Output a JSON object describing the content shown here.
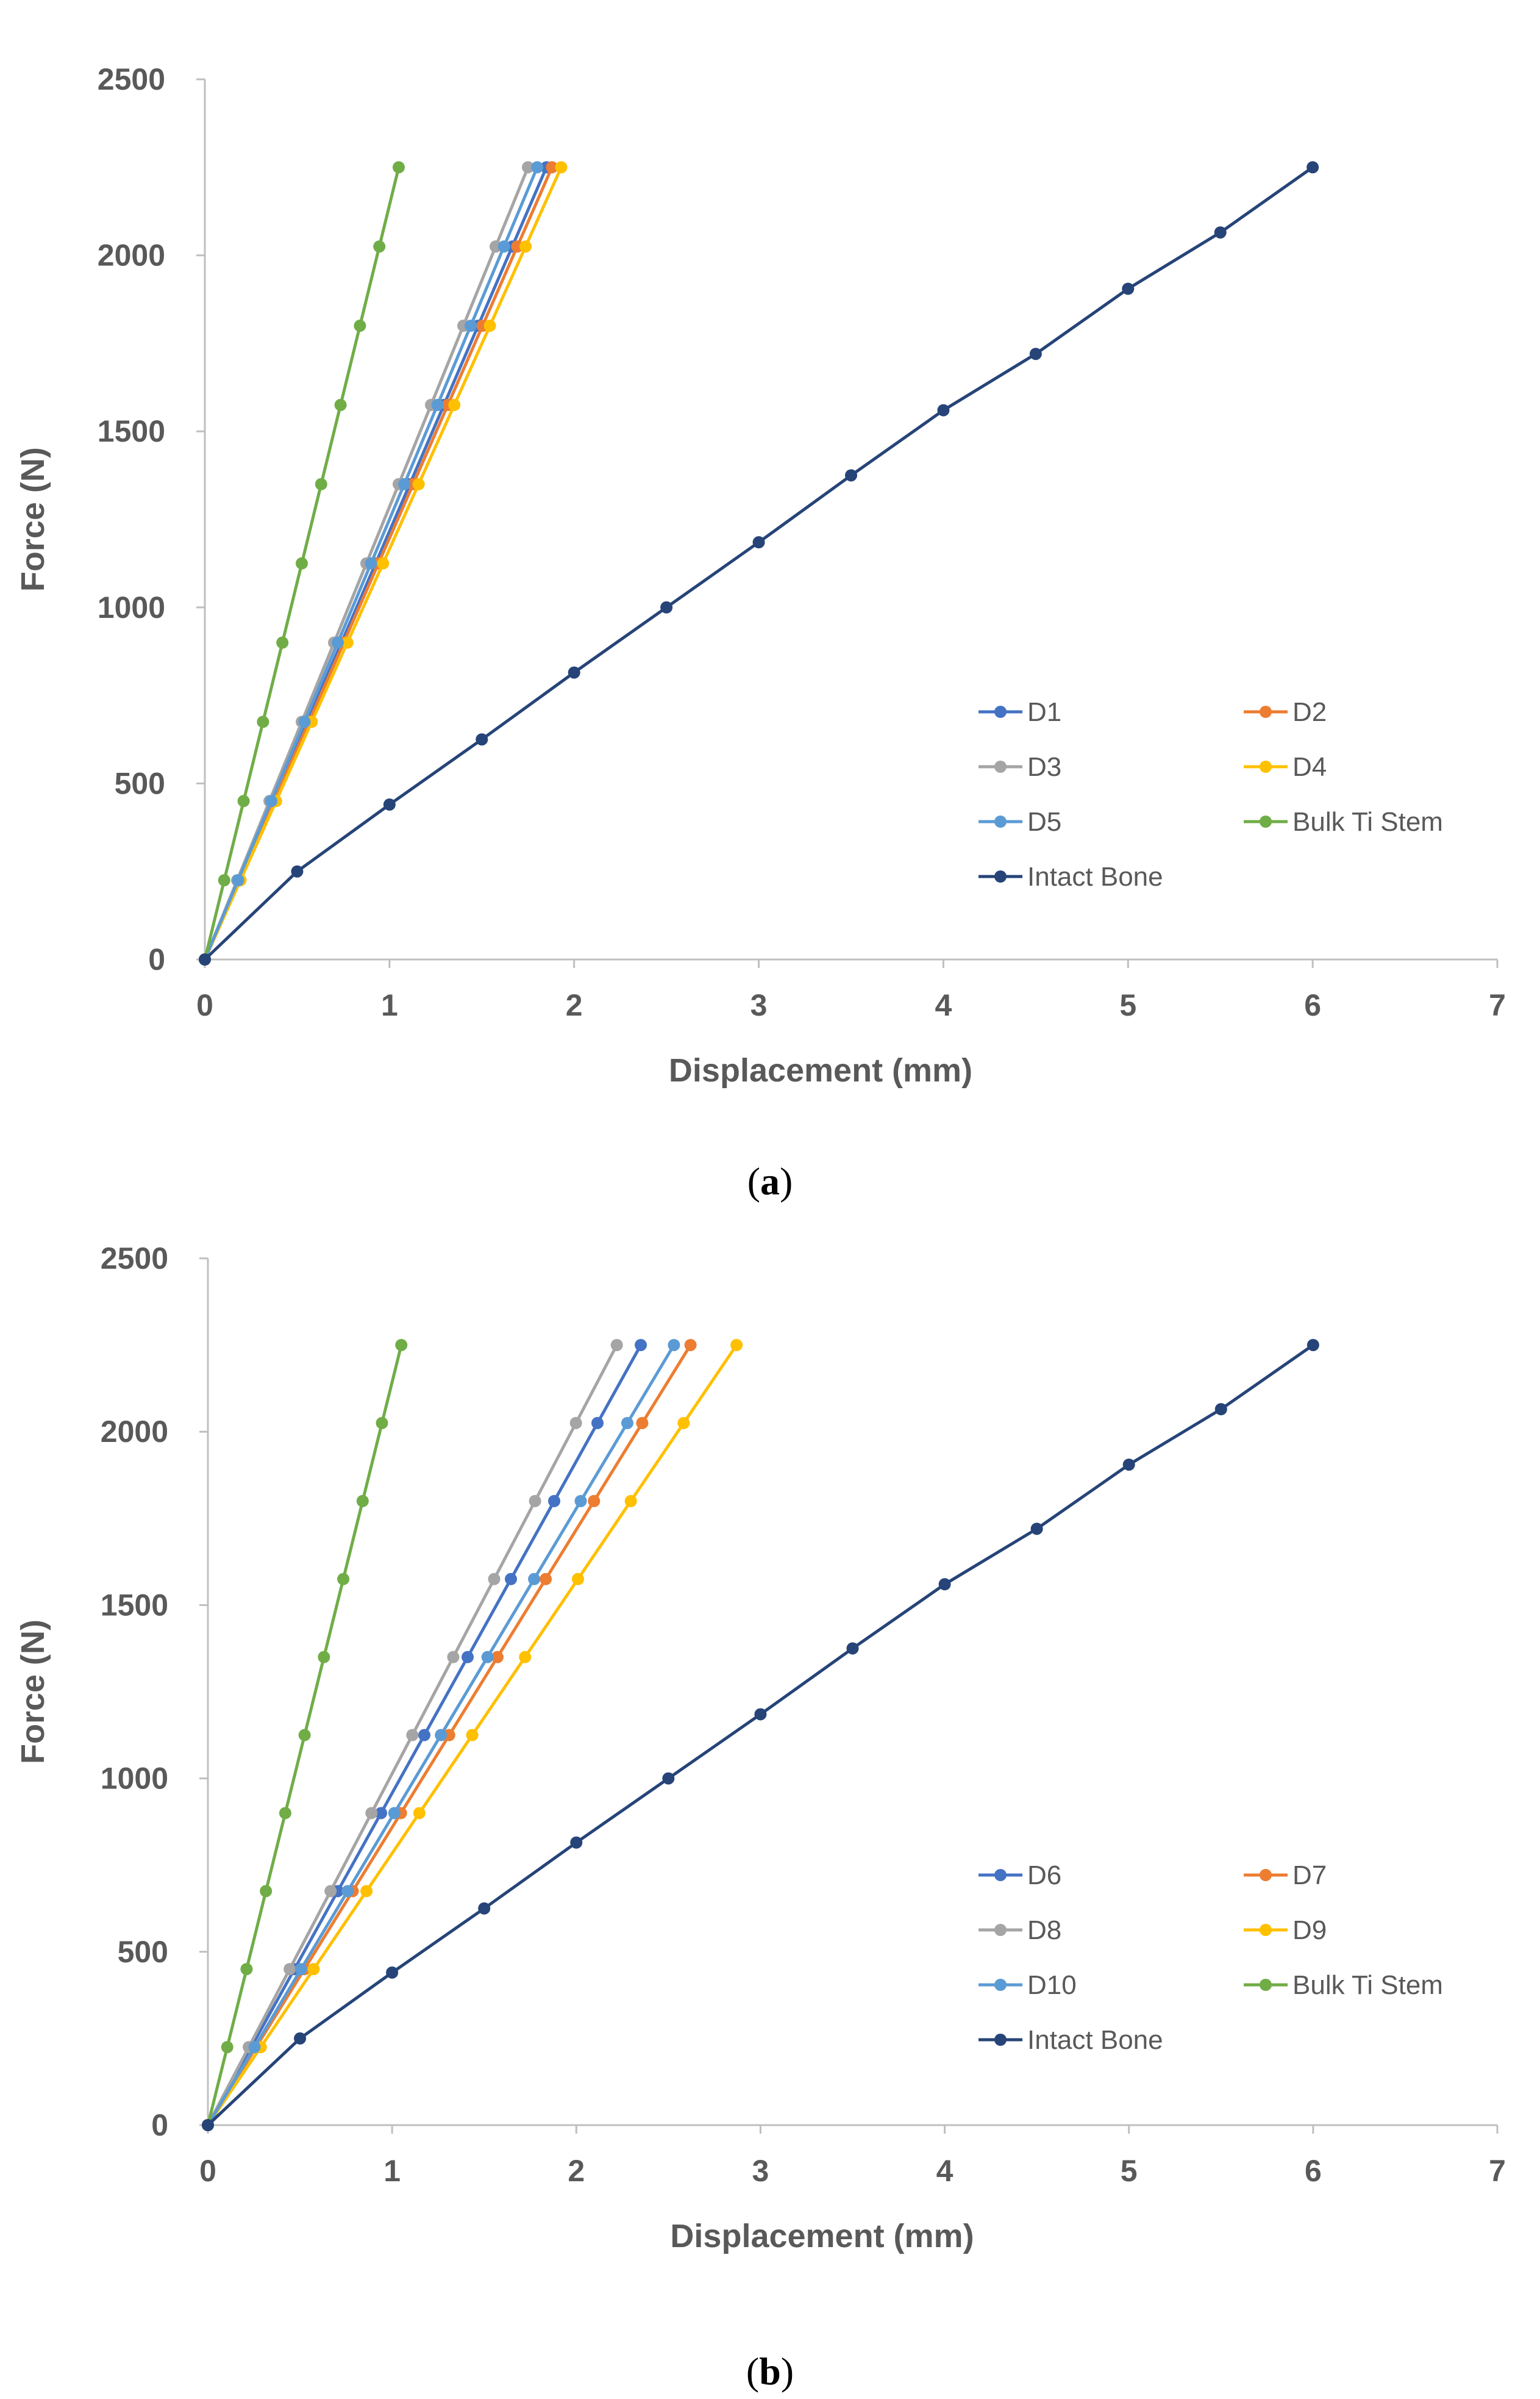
{
  "chart_data": [
    {
      "type": "line",
      "caption_label": "a",
      "xlabel": "Displacement (mm)",
      "ylabel": "Force (N)",
      "xlim": [
        0,
        7
      ],
      "ylim": [
        0,
        2500
      ],
      "x_ticks": [
        "0",
        "1",
        "2",
        "3",
        "4",
        "5",
        "6",
        "7"
      ],
      "y_ticks": [
        "0",
        "500",
        "1000",
        "1500",
        "2000",
        "2500"
      ],
      "legend_position": "right-middle",
      "series": [
        {
          "name": "D1",
          "color": "#4472C4",
          "points": [
            [
              0,
              0
            ],
            [
              0.185,
              225
            ],
            [
              0.37,
              450
            ],
            [
              0.555,
              675
            ],
            [
              0.74,
              900
            ],
            [
              0.925,
              1125
            ],
            [
              1.11,
              1350
            ],
            [
              1.295,
              1575
            ],
            [
              1.48,
              1800
            ],
            [
              1.665,
              2025
            ],
            [
              1.85,
              2250
            ]
          ]
        },
        {
          "name": "D2",
          "color": "#ED7D31",
          "points": [
            [
              0,
              0
            ],
            [
              0.188,
              225
            ],
            [
              0.376,
              450
            ],
            [
              0.564,
              675
            ],
            [
              0.752,
              900
            ],
            [
              0.94,
              1125
            ],
            [
              1.128,
              1350
            ],
            [
              1.316,
              1575
            ],
            [
              1.504,
              1800
            ],
            [
              1.692,
              2025
            ],
            [
              1.88,
              2250
            ]
          ]
        },
        {
          "name": "D3",
          "color": "#A5A5A5",
          "points": [
            [
              0,
              0
            ],
            [
              0.175,
              225
            ],
            [
              0.35,
              450
            ],
            [
              0.525,
              675
            ],
            [
              0.7,
              900
            ],
            [
              0.875,
              1125
            ],
            [
              1.05,
              1350
            ],
            [
              1.225,
              1575
            ],
            [
              1.4,
              1800
            ],
            [
              1.575,
              2025
            ],
            [
              1.75,
              2250
            ]
          ]
        },
        {
          "name": "D4",
          "color": "#FFC000",
          "points": [
            [
              0,
              0
            ],
            [
              0.193,
              225
            ],
            [
              0.386,
              450
            ],
            [
              0.579,
              675
            ],
            [
              0.772,
              900
            ],
            [
              0.965,
              1125
            ],
            [
              1.158,
              1350
            ],
            [
              1.351,
              1575
            ],
            [
              1.544,
              1800
            ],
            [
              1.737,
              2025
            ],
            [
              1.93,
              2250
            ]
          ]
        },
        {
          "name": "D5",
          "color": "#5B9BD5",
          "points": [
            [
              0,
              0
            ],
            [
              0.18,
              225
            ],
            [
              0.36,
              450
            ],
            [
              0.54,
              675
            ],
            [
              0.72,
              900
            ],
            [
              0.9,
              1125
            ],
            [
              1.08,
              1350
            ],
            [
              1.26,
              1575
            ],
            [
              1.44,
              1800
            ],
            [
              1.62,
              2025
            ],
            [
              1.8,
              2250
            ]
          ]
        },
        {
          "name": "Bulk Ti Stem",
          "color": "#70AD47",
          "points": [
            [
              0,
              0
            ],
            [
              0.105,
              225
            ],
            [
              0.21,
              450
            ],
            [
              0.315,
              675
            ],
            [
              0.42,
              900
            ],
            [
              0.525,
              1125
            ],
            [
              0.63,
              1350
            ],
            [
              0.735,
              1575
            ],
            [
              0.84,
              1800
            ],
            [
              0.945,
              2025
            ],
            [
              1.05,
              2250
            ]
          ]
        },
        {
          "name": "Intact Bone",
          "color": "#264478",
          "points": [
            [
              0,
              0
            ],
            [
              0.5,
              250
            ],
            [
              1,
              440
            ],
            [
              1.5,
              625
            ],
            [
              2,
              815
            ],
            [
              2.5,
              1000
            ],
            [
              3,
              1185
            ],
            [
              3.5,
              1375
            ],
            [
              4,
              1560
            ],
            [
              4.5,
              1720
            ],
            [
              5,
              1905
            ],
            [
              5.5,
              2065
            ],
            [
              6,
              2250
            ]
          ]
        }
      ]
    },
    {
      "type": "line",
      "caption_label": "b",
      "xlabel": "Displacement (mm)",
      "ylabel": "Force (N)",
      "xlim": [
        0,
        7
      ],
      "ylim": [
        0,
        2500
      ],
      "x_ticks": [
        "0",
        "1",
        "2",
        "3",
        "4",
        "5",
        "6",
        "7"
      ],
      "y_ticks": [
        "0",
        "500",
        "1000",
        "1500",
        "2000",
        "2500"
      ],
      "legend_position": "right-middle",
      "series": [
        {
          "name": "D6",
          "color": "#4472C4",
          "points": [
            [
              0,
              0
            ],
            [
              0.235,
              225
            ],
            [
              0.47,
              450
            ],
            [
              0.705,
              675
            ],
            [
              0.94,
              900
            ],
            [
              1.175,
              1125
            ],
            [
              1.41,
              1350
            ],
            [
              1.645,
              1575
            ],
            [
              1.88,
              1800
            ],
            [
              2.115,
              2025
            ],
            [
              2.35,
              2250
            ]
          ]
        },
        {
          "name": "D7",
          "color": "#ED7D31",
          "points": [
            [
              0,
              0
            ],
            [
              0.262,
              225
            ],
            [
              0.524,
              450
            ],
            [
              0.786,
              675
            ],
            [
              1.048,
              900
            ],
            [
              1.31,
              1125
            ],
            [
              1.572,
              1350
            ],
            [
              1.834,
              1575
            ],
            [
              2.096,
              1800
            ],
            [
              2.358,
              2025
            ],
            [
              2.62,
              2250
            ]
          ]
        },
        {
          "name": "D8",
          "color": "#A5A5A5",
          "points": [
            [
              0,
              0
            ],
            [
              0.222,
              225
            ],
            [
              0.444,
              450
            ],
            [
              0.666,
              675
            ],
            [
              0.888,
              900
            ],
            [
              1.11,
              1125
            ],
            [
              1.332,
              1350
            ],
            [
              1.554,
              1575
            ],
            [
              1.776,
              1800
            ],
            [
              1.998,
              2025
            ],
            [
              2.22,
              2250
            ]
          ]
        },
        {
          "name": "D9",
          "color": "#FFC000",
          "points": [
            [
              0,
              0
            ],
            [
              0.287,
              225
            ],
            [
              0.574,
              450
            ],
            [
              0.861,
              675
            ],
            [
              1.148,
              900
            ],
            [
              1.435,
              1125
            ],
            [
              1.722,
              1350
            ],
            [
              2.009,
              1575
            ],
            [
              2.296,
              1800
            ],
            [
              2.583,
              2025
            ],
            [
              2.87,
              2250
            ]
          ]
        },
        {
          "name": "D10",
          "color": "#5B9BD5",
          "points": [
            [
              0,
              0
            ],
            [
              0.253,
              225
            ],
            [
              0.506,
              450
            ],
            [
              0.759,
              675
            ],
            [
              1.012,
              900
            ],
            [
              1.265,
              1125
            ],
            [
              1.518,
              1350
            ],
            [
              1.771,
              1575
            ],
            [
              2.024,
              1800
            ],
            [
              2.277,
              2025
            ],
            [
              2.53,
              2250
            ]
          ]
        },
        {
          "name": "Bulk Ti Stem",
          "color": "#70AD47",
          "points": [
            [
              0,
              0
            ],
            [
              0.105,
              225
            ],
            [
              0.21,
              450
            ],
            [
              0.315,
              675
            ],
            [
              0.42,
              900
            ],
            [
              0.525,
              1125
            ],
            [
              0.63,
              1350
            ],
            [
              0.735,
              1575
            ],
            [
              0.84,
              1800
            ],
            [
              0.945,
              2025
            ],
            [
              1.05,
              2250
            ]
          ]
        },
        {
          "name": "Intact Bone",
          "color": "#264478",
          "points": [
            [
              0,
              0
            ],
            [
              0.5,
              250
            ],
            [
              1,
              440
            ],
            [
              1.5,
              625
            ],
            [
              2,
              815
            ],
            [
              2.5,
              1000
            ],
            [
              3,
              1185
            ],
            [
              3.5,
              1375
            ],
            [
              4,
              1560
            ],
            [
              4.5,
              1720
            ],
            [
              5,
              1905
            ],
            [
              5.5,
              2065
            ],
            [
              6,
              2250
            ]
          ]
        }
      ]
    }
  ]
}
